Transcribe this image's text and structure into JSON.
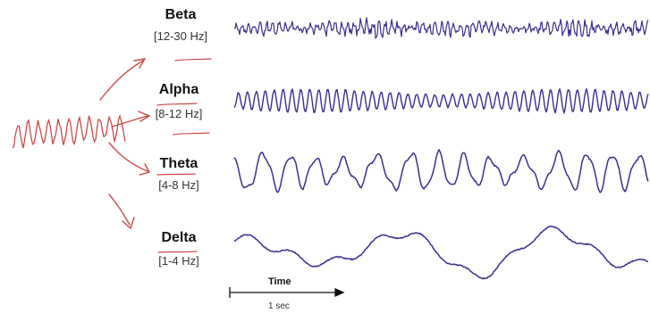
{
  "bands": [
    {
      "name": "Beta",
      "range": "[12-30 Hz]"
    },
    {
      "name": "Alpha",
      "range": "[8-12 Hz]"
    },
    {
      "name": "Theta",
      "range": "[4-8 Hz]"
    },
    {
      "name": "Delta",
      "range": "[1-4 Hz]"
    }
  ],
  "axis": {
    "label": "Time",
    "scale": "1 sec"
  },
  "colors": {
    "wave": "#3b2f8f",
    "annotation": "#c94a4a",
    "text": "#111111"
  }
}
